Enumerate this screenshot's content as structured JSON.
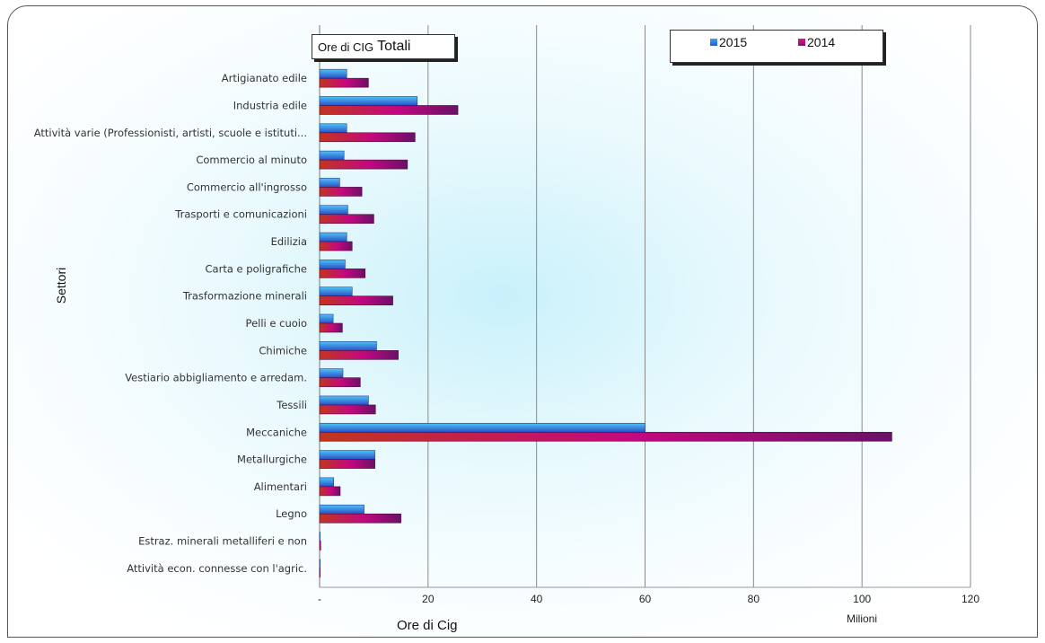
{
  "title": {
    "part1": "Ore di CIG",
    "part2": "Totali"
  },
  "legend": [
    {
      "label": "2015",
      "color": "#3a7ad8"
    },
    {
      "label": "2014",
      "color": "#c8087a"
    }
  ],
  "axis": {
    "y_title": "Settori",
    "x_title": "Ore di Cig",
    "x_unit": "Milioni"
  },
  "chart_data": {
    "type": "bar",
    "orientation": "horizontal",
    "categories": [
      "Artigianato edile",
      "Industria edile",
      "Attività varie (Professionisti, artisti, scuole e istituti...",
      "Commercio al minuto",
      "Commercio all'ingrosso",
      "Trasporti e comunicazioni",
      "Edilizia",
      "Carta e poligrafiche",
      "Trasformazione minerali",
      "Pelli e cuoio",
      "Chimiche",
      "Vestiario abbigliamento e arredam.",
      "Tessili",
      "Meccaniche",
      "Metallurgiche",
      "Alimentari",
      "Legno",
      "Estraz. minerali metalliferi e non",
      "Attività econ. connesse con l'agric."
    ],
    "series": [
      {
        "name": "2015",
        "values": [
          5.0,
          18.0,
          5.0,
          4.5,
          3.7,
          5.2,
          5.0,
          4.7,
          6.0,
          2.5,
          10.5,
          4.3,
          9.0,
          60.0,
          10.2,
          2.6,
          8.2,
          0.1,
          0.05
        ]
      },
      {
        "name": "2014",
        "values": [
          9.0,
          25.5,
          17.6,
          16.2,
          7.8,
          10.0,
          6.0,
          8.4,
          13.5,
          4.2,
          14.5,
          7.5,
          10.3,
          105.5,
          10.2,
          3.8,
          15.0,
          0.2,
          0.1
        ]
      }
    ],
    "xlim": [
      0,
      120
    ],
    "xticks": [
      "-",
      "20",
      "40",
      "60",
      "80",
      "100",
      "120"
    ],
    "grid": true,
    "legend_position": "top-right"
  }
}
